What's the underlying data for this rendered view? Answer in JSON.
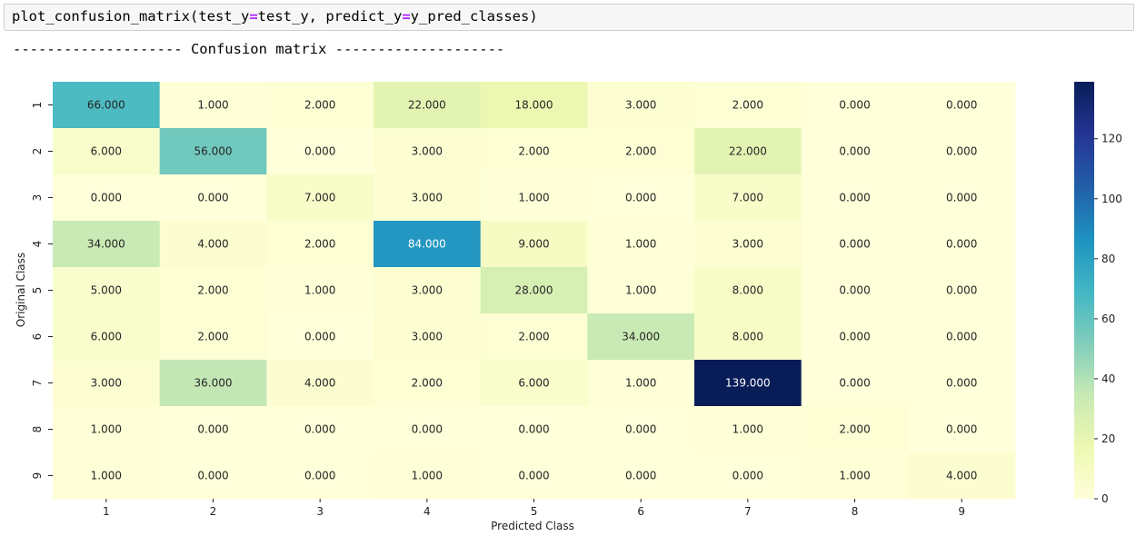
{
  "code_cell": {
    "func": "plot_confusion_matrix",
    "arg1_name": "test_y",
    "arg1_value": "test_y",
    "arg2_name": "predict_y",
    "arg2_value": "y_pred_classes"
  },
  "output": {
    "header": "-------------------- Confusion matrix --------------------"
  },
  "chart_data": {
    "type": "heatmap",
    "title": "",
    "xlabel": "Predicted Class",
    "ylabel": "Original Class",
    "x_categories": [
      "1",
      "2",
      "3",
      "4",
      "5",
      "6",
      "7",
      "8",
      "9"
    ],
    "y_categories": [
      "1",
      "2",
      "3",
      "4",
      "5",
      "6",
      "7",
      "8",
      "9"
    ],
    "values": [
      [
        66,
        1,
        2,
        22,
        18,
        3,
        2,
        0,
        0
      ],
      [
        6,
        56,
        0,
        3,
        2,
        2,
        22,
        0,
        0
      ],
      [
        0,
        0,
        7,
        3,
        1,
        0,
        7,
        0,
        0
      ],
      [
        34,
        4,
        2,
        84,
        9,
        1,
        3,
        0,
        0
      ],
      [
        5,
        2,
        1,
        3,
        28,
        1,
        8,
        0,
        0
      ],
      [
        6,
        2,
        0,
        3,
        2,
        34,
        8,
        0,
        0
      ],
      [
        3,
        36,
        4,
        2,
        6,
        1,
        139,
        0,
        0
      ],
      [
        1,
        0,
        0,
        0,
        0,
        0,
        1,
        2,
        0
      ],
      [
        1,
        0,
        0,
        1,
        0,
        0,
        0,
        1,
        4
      ]
    ],
    "value_format": "3 decimals",
    "colormap": "YlGnBu",
    "vmin": 0,
    "vmax": 139,
    "colorbar_ticks": [
      0,
      20,
      40,
      60,
      80,
      100,
      120
    ]
  }
}
